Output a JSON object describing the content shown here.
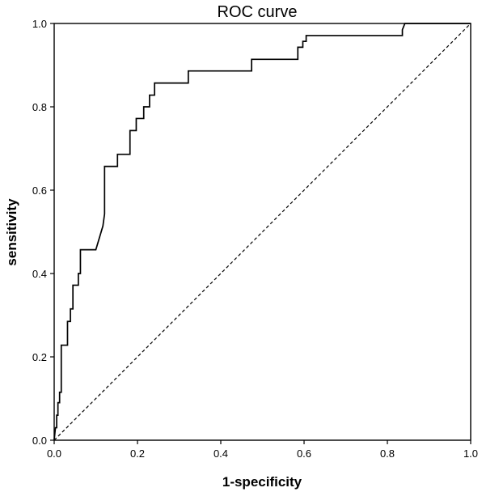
{
  "chart_data": {
    "type": "line",
    "title": "ROC  curve",
    "xlabel": "1-specificity",
    "ylabel": "sensitivity",
    "xlim": [
      0,
      1
    ],
    "ylim": [
      0,
      1
    ],
    "xticks": [
      "0.0",
      "0.2",
      "0.4",
      "0.6",
      "0.8",
      "1.0"
    ],
    "yticks": [
      "0.0",
      "0.2",
      "0.4",
      "0.6",
      "0.8",
      "1.0"
    ],
    "grid": false,
    "legend": "none",
    "series": [
      {
        "style": "solid",
        "x": [
          0.0,
          0.003,
          0.006,
          0.006,
          0.009,
          0.009,
          0.013,
          0.013,
          0.017,
          0.017,
          0.032,
          0.032,
          0.039,
          0.039,
          0.045,
          0.045,
          0.058,
          0.058,
          0.063,
          0.063,
          0.1,
          0.117,
          0.121,
          0.121,
          0.152,
          0.152,
          0.182,
          0.182,
          0.197,
          0.197,
          0.215,
          0.215,
          0.229,
          0.229,
          0.241,
          0.241,
          0.322,
          0.322,
          0.474,
          0.474,
          0.585,
          0.585,
          0.597,
          0.597,
          0.605,
          0.605,
          0.836,
          0.836,
          0.842,
          1.0
        ],
        "y": [
          0.0,
          0.03,
          0.03,
          0.06,
          0.06,
          0.09,
          0.09,
          0.115,
          0.115,
          0.228,
          0.228,
          0.285,
          0.285,
          0.315,
          0.315,
          0.372,
          0.372,
          0.4,
          0.4,
          0.457,
          0.457,
          0.514,
          0.543,
          0.657,
          0.657,
          0.686,
          0.686,
          0.743,
          0.743,
          0.772,
          0.772,
          0.8,
          0.8,
          0.828,
          0.828,
          0.857,
          0.857,
          0.886,
          0.886,
          0.914,
          0.914,
          0.943,
          0.943,
          0.957,
          0.957,
          0.971,
          0.971,
          0.985,
          1.0,
          1.0
        ]
      },
      {
        "style": "dashed",
        "x": [
          0,
          1
        ],
        "y": [
          0,
          1
        ]
      }
    ]
  }
}
